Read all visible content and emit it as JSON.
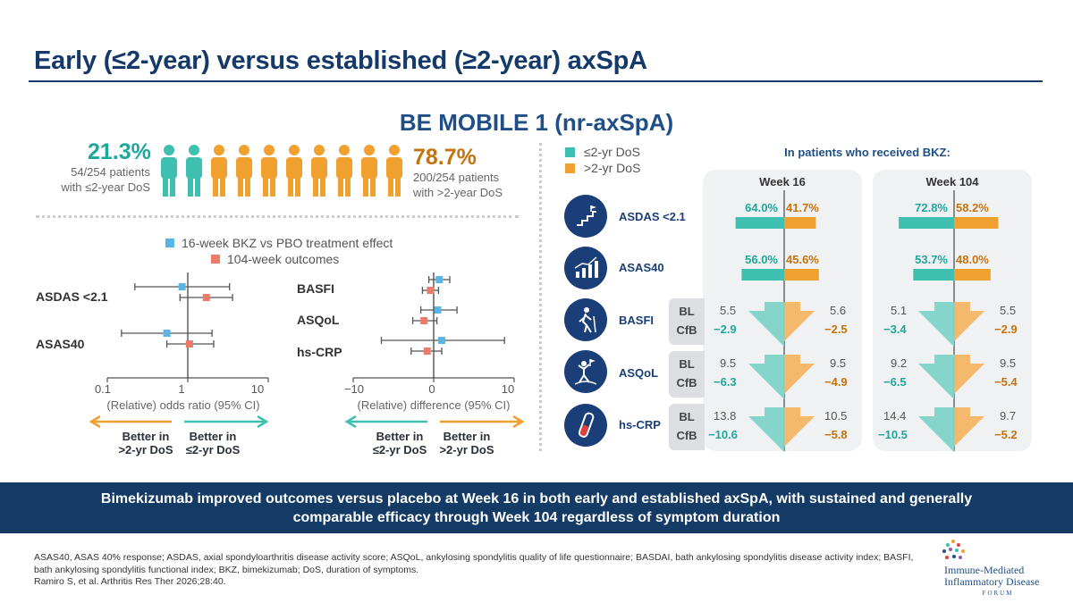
{
  "header": {
    "title": "Early (≤2-year) versus established (≥2-year) axSpA"
  },
  "study_title": "BE MOBILE 1 (nr-axSpA)",
  "population": {
    "early": {
      "percent": "21.3%",
      "line1": "54/254 patients",
      "line2": "with ≤2-year DoS"
    },
    "established": {
      "percent": "78.7%",
      "line1": "200/254 patients",
      "line2": "with >2-year DoS"
    },
    "icon_teal_count": 2,
    "icon_orange_count": 8,
    "colors": {
      "teal": "#3fbfb0",
      "orange": "#f0a02e"
    }
  },
  "forest_legend": {
    "item1": "16-week BKZ vs PBO treatment effect",
    "item2": "104-week outcomes",
    "color1": "#5ab4e5",
    "color2": "#ee7a6a"
  },
  "chart_data": [
    {
      "type": "scatter",
      "name": "odds-ratio-forest",
      "xscale": "log",
      "xlim": [
        0.1,
        10
      ],
      "xticks": [
        "0.1",
        "1",
        "10"
      ],
      "xlabel": "(Relative) odds ratio (95% CI)",
      "rows": [
        {
          "label": "ASDAS <2.1",
          "week16": {
            "est": 0.85,
            "lo": 0.22,
            "hi": 3.3
          },
          "week104": {
            "est": 1.7,
            "lo": 0.8,
            "hi": 3.6
          }
        },
        {
          "label": "ASAS40",
          "week16": {
            "est": 0.55,
            "lo": 0.15,
            "hi": 2.0
          },
          "week104": {
            "est": 1.05,
            "lo": 0.55,
            "hi": 2.1
          }
        }
      ],
      "arrow_left": {
        "line1": "Better in",
        "line2": ">2-yr DoS"
      },
      "arrow_right": {
        "line1": "Better in",
        "line2": "≤2-yr DoS"
      }
    },
    {
      "type": "scatter",
      "name": "difference-forest",
      "xlim": [
        -10,
        10
      ],
      "xticks": [
        "−10",
        "0",
        "10"
      ],
      "xlabel": "(Relative) difference (95% CI)",
      "rows": [
        {
          "label": "BASFI",
          "week16": {
            "est": 0.7,
            "lo": -0.6,
            "hi": 2.0
          },
          "week104": {
            "est": -0.4,
            "lo": -1.4,
            "hi": 0.6
          }
        },
        {
          "label": "ASQoL",
          "week16": {
            "est": 0.5,
            "lo": -1.6,
            "hi": 2.9
          },
          "week104": {
            "est": -1.2,
            "lo": -2.6,
            "hi": 0.4
          }
        },
        {
          "label": "hs-CRP",
          "week16": {
            "est": 1.0,
            "lo": -6.5,
            "hi": 8.8
          },
          "week104": {
            "est": -0.8,
            "lo": -2.8,
            "hi": 1.0
          }
        }
      ],
      "arrow_left": {
        "line1": "Better in",
        "line2": "≤2-yr DoS"
      },
      "arrow_right": {
        "line1": "Better in",
        "line2": ">2-yr DoS"
      }
    },
    {
      "type": "bar",
      "name": "bkz-response-rates",
      "series": [
        {
          "name": "≤2-yr DoS",
          "color": "#3fbfb0"
        },
        {
          "name": ">2-yr DoS",
          "color": "#f0a02e"
        }
      ],
      "heading": "In patients who received BKZ:",
      "panels": [
        "Week 16",
        "Week 104"
      ],
      "binary": [
        {
          "label": "ASDAS <2.1",
          "icon": "trophy-stairs-icon",
          "week16": [
            "64.0%",
            "41.7%"
          ],
          "week104": [
            "72.8%",
            "58.2%"
          ],
          "values16": [
            64.0,
            41.7
          ],
          "values104": [
            72.8,
            58.2
          ]
        },
        {
          "label": "ASAS40",
          "icon": "growth-chart-icon",
          "week16": [
            "56.0%",
            "45.6%"
          ],
          "week104": [
            "53.7%",
            "48.0%"
          ],
          "values16": [
            56.0,
            45.6
          ],
          "values104": [
            53.7,
            48.0
          ]
        }
      ],
      "continuous": [
        {
          "label": "BASFI",
          "icon": "walking-person-icon",
          "bl": "BL",
          "cfb": "CfB",
          "week16": {
            "bl_early": "5.5",
            "cfb_early": "−2.9",
            "bl_est": "5.6",
            "cfb_est": "−2.5"
          },
          "week104": {
            "bl_early": "5.1",
            "cfb_early": "−3.4",
            "bl_est": "5.5",
            "cfb_est": "−2.9"
          }
        },
        {
          "label": "ASQoL",
          "icon": "person-flag-icon",
          "bl": "BL",
          "cfb": "CfB",
          "week16": {
            "bl_early": "9.5",
            "cfb_early": "−6.3",
            "bl_est": "9.5",
            "cfb_est": "−4.9"
          },
          "week104": {
            "bl_early": "9.2",
            "cfb_early": "−6.5",
            "bl_est": "9.5",
            "cfb_est": "−5.4"
          }
        },
        {
          "label": "hs-CRP",
          "icon": "test-tube-icon",
          "bl": "BL",
          "cfb": "CfB",
          "week16": {
            "bl_early": "13.8",
            "cfb_early": "−10.6",
            "bl_est": "10.5",
            "cfb_est": "−5.8"
          },
          "week104": {
            "bl_early": "14.4",
            "cfb_early": "−10.5",
            "bl_est": "9.7",
            "cfb_est": "−5.2"
          }
        }
      ]
    }
  ],
  "banner": {
    "line1": "Bimekizumab improved outcomes versus placebo at Week 16 in both early and established axSpA, with sustained and generally",
    "line2": "comparable efficacy through Week 104 regardless of symptom duration"
  },
  "footnote": "ASAS40, ASAS 40% response; ASDAS, axial spondyloarthritis disease activity score; ASQoL, ankylosing spondylitis quality of life questionnaire; BASDAI, bath ankylosing spondylitis disease activity index; BASFI, bath ankylosing spondylitis functional index; BKZ, bimekizumab; DoS, duration of symptoms.",
  "citation": "Ramiro S, et al. Arthritis Res Ther 2026;28:40.",
  "logo": {
    "line1": "Immune-Mediated",
    "line2": "Inflammatory Disease",
    "line3": "FORUM"
  }
}
